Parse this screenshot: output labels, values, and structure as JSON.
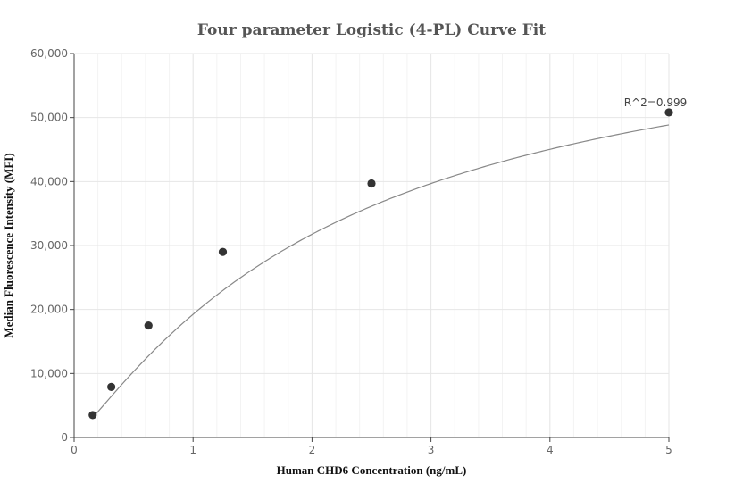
{
  "chart_data": {
    "type": "scatter",
    "title": "Four parameter Logistic (4-PL) Curve Fit",
    "xlabel": "Human CHD6 Concentration (ng/mL)",
    "ylabel": "Median Fluorescence Intensity (MFI)",
    "xlim": [
      0,
      5
    ],
    "ylim": [
      0,
      60000
    ],
    "x_ticks": [
      0,
      1,
      2,
      3,
      4,
      5
    ],
    "x_tick_labels": [
      "0",
      "1",
      "2",
      "3",
      "4",
      "5"
    ],
    "y_ticks": [
      0,
      10000,
      20000,
      30000,
      40000,
      50000,
      60000
    ],
    "y_tick_labels": [
      "0",
      "10,000",
      "20,000",
      "30,000",
      "40,000",
      "50,000",
      "60,000"
    ],
    "grid": true,
    "series": [
      {
        "x": [
          0.156,
          0.3125,
          0.625,
          1.25,
          2.5,
          5
        ],
        "y": [
          3500,
          7900,
          17500,
          29000,
          39700,
          50800
        ],
        "color": "#333333"
      }
    ],
    "fit": {
      "model": "4PL",
      "A": 0,
      "B": 1.14,
      "C": 2.3,
      "D": 69000,
      "color": "#888888"
    },
    "annotation": {
      "text": "R^2=0.999",
      "x": 5,
      "y": 50800
    }
  }
}
